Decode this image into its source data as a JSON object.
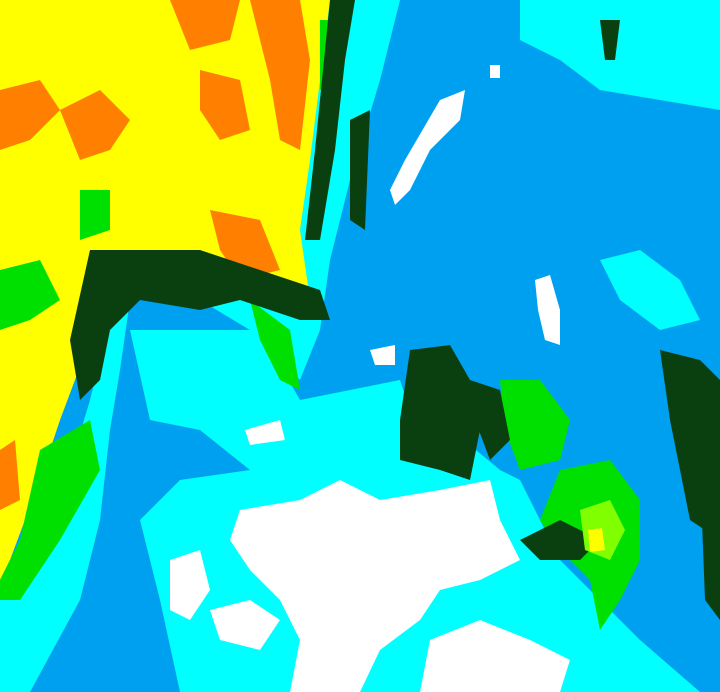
{
  "image": {
    "kind": "false-color satellite imagery",
    "palette": {
      "background": "#00a0f0",
      "cyan": "#00ffff",
      "white": "#ffffff",
      "dark_green": "#0a4010",
      "green": "#00e000",
      "light_green": "#80ff00",
      "yellow": "#ffff00",
      "orange": "#ff8000"
    }
  }
}
